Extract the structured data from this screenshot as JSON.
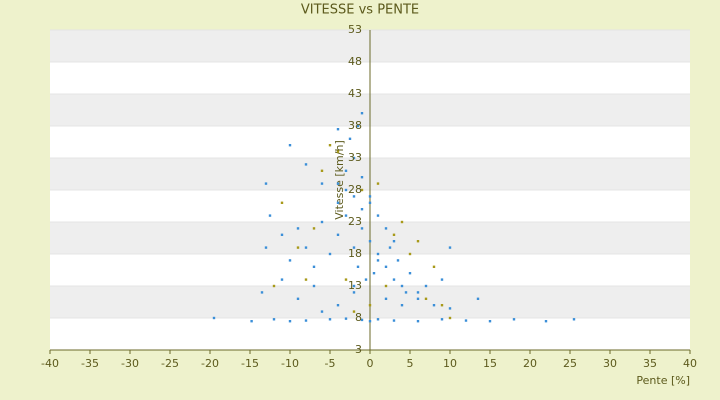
{
  "chart_data": {
    "type": "scatter",
    "title": "VITESSE vs PENTE",
    "x_label": "Pente [%]",
    "y_label": "Vitesse [km/h]",
    "xlim": [
      -40,
      40
    ],
    "xticks": [
      -40,
      -35,
      -30,
      -25,
      -20,
      -15,
      -10,
      -5,
      0,
      5,
      10,
      15,
      20,
      25,
      30,
      35,
      40
    ],
    "ylim": [
      3,
      53
    ],
    "yticks": [
      3,
      8,
      13,
      18,
      23,
      28,
      33,
      38,
      43,
      48,
      53
    ],
    "grid": "bands",
    "series": [
      {
        "color": "#3b8fd8",
        "x": [
          -19.5,
          -14.8,
          -12,
          -10,
          -8,
          -5,
          -3,
          -1,
          0,
          1,
          3,
          6,
          9,
          12,
          15,
          18,
          22,
          25.5,
          -13.5,
          -11,
          -9,
          -7,
          -6,
          -4,
          -2,
          2,
          4,
          6,
          8,
          10,
          13.5,
          -13,
          -12.5,
          -11,
          -10,
          -9,
          -8,
          -7,
          -6,
          -5,
          -4,
          -3,
          -2,
          -1,
          0,
          1,
          2,
          3,
          4,
          5,
          6,
          7,
          -4,
          -3,
          -2,
          -1,
          0,
          1,
          2,
          3,
          -3,
          -2,
          -1,
          -4,
          -2.5,
          -1.5,
          -4,
          -1,
          -10,
          -8,
          -6,
          -13,
          1,
          0.5,
          -0.5,
          2.5,
          3.5,
          4.5,
          -1.5,
          -2,
          9,
          10,
          0
        ],
        "values": [
          8,
          7.5,
          7.8,
          7.5,
          7.6,
          7.8,
          7.9,
          7.7,
          7.5,
          7.8,
          7.6,
          7.5,
          7.8,
          7.6,
          7.5,
          7.8,
          7.5,
          7.8,
          12,
          14,
          11,
          13,
          9,
          10,
          12,
          11,
          10,
          11,
          10,
          9.5,
          11,
          19,
          24,
          21,
          17,
          22,
          19,
          16,
          23,
          18,
          21,
          24,
          19,
          22,
          20,
          18,
          16,
          14,
          13,
          15,
          12,
          13,
          26,
          28,
          27,
          25,
          26,
          24,
          22,
          20,
          31,
          33,
          30,
          29,
          36,
          38,
          37.5,
          40,
          35,
          32,
          29,
          29,
          17,
          15,
          14,
          19,
          17,
          12,
          16,
          13,
          14,
          19,
          27
        ]
      },
      {
        "color": "#a89a1a",
        "x": [
          -11,
          -9,
          -7,
          -6,
          -5,
          -4,
          -3,
          -2,
          0,
          2,
          3,
          4,
          5,
          7,
          8,
          10,
          -8,
          -1,
          1,
          6,
          -12,
          9
        ],
        "values": [
          26,
          19,
          22,
          31,
          35,
          34,
          14,
          9,
          10,
          13,
          21,
          23,
          18,
          11,
          16,
          8,
          14,
          28,
          29,
          20,
          13,
          10
        ]
      }
    ]
  }
}
